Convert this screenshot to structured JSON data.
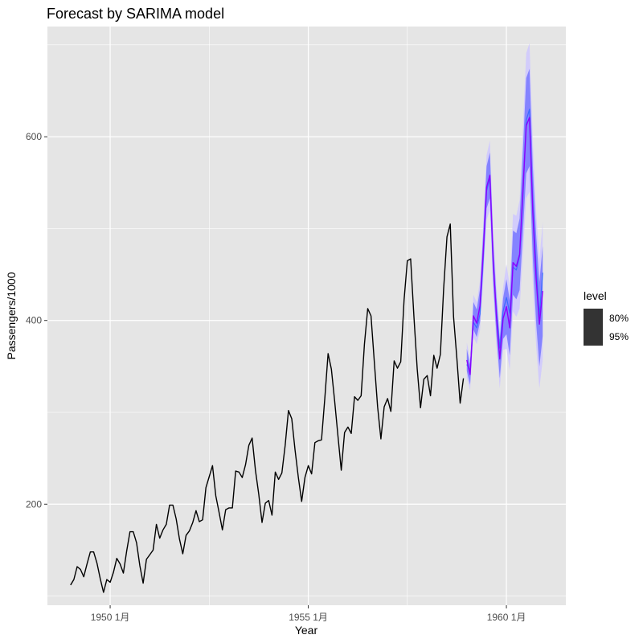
{
  "chart_data": {
    "type": "line",
    "title": "Forecast by SARIMA model",
    "xlabel": "Year",
    "ylabel": "Passengers/1000",
    "xlim": [
      "1948-06",
      "1961-07"
    ],
    "ylim": [
      90,
      720
    ],
    "x_ticks": [
      {
        "date": "1950-01",
        "label": "1950  1月"
      },
      {
        "date": "1955-01",
        "label": "1955  1月"
      },
      {
        "date": "1960-01",
        "label": "1960  1月"
      }
    ],
    "y_ticks": [
      200,
      400,
      600
    ],
    "grid": true,
    "legend": {
      "title": "level",
      "placement": "right",
      "entries": [
        "80%",
        "95%"
      ]
    },
    "colors": {
      "panel_bg": "#e5e5e5",
      "grid": "#ffffff",
      "history_line": "#000000",
      "forecast_line": "#8b00ff",
      "band_80": "#7b7bff",
      "band_95": "#cfc8ff",
      "legend_key": "#333333"
    },
    "series": [
      {
        "role": "history",
        "start": "1949-01",
        "values": [
          112,
          118,
          132,
          129,
          121,
          135,
          148,
          148,
          136,
          119,
          104,
          118,
          115,
          126,
          141,
          135,
          125,
          149,
          170,
          170,
          158,
          133,
          114,
          140,
          145,
          150,
          178,
          163,
          172,
          178,
          199,
          199,
          184,
          162,
          146,
          166,
          171,
          180,
          193,
          181,
          183,
          218,
          230,
          242,
          209,
          191,
          172,
          194,
          196,
          196,
          236,
          235,
          229,
          243,
          264,
          272,
          237,
          211,
          180,
          201,
          204,
          188,
          235,
          227,
          234,
          264,
          302,
          293,
          259,
          229,
          203,
          229,
          242,
          233,
          267,
          269,
          270,
          315,
          364,
          347,
          312,
          274,
          237,
          278,
          284,
          277,
          317,
          313,
          318,
          374,
          413,
          405,
          355,
          306,
          271,
          306,
          315,
          301,
          356,
          348,
          355,
          422,
          465,
          467,
          404,
          347,
          305,
          336,
          340,
          318,
          362,
          348,
          363,
          435,
          491,
          505,
          404,
          359,
          310,
          337
        ]
      },
      {
        "role": "forecast",
        "start": "1959-01",
        "values": [
          357,
          341,
          405,
          397,
          416,
          476,
          545,
          558,
          465,
          404,
          358,
          402,
          415,
          392,
          463,
          459,
          472,
          541,
          612,
          621,
          518,
          446,
          396,
          432
        ],
        "lo80": [
          345,
          330,
          390,
          382,
          398,
          455,
          522,
          533,
          442,
          383,
          337,
          380,
          385,
          362,
          428,
          423,
          433,
          496,
          560,
          568,
          468,
          398,
          350,
          383
        ],
        "hi80": [
          369,
          352,
          420,
          412,
          434,
          497,
          568,
          583,
          488,
          425,
          379,
          424,
          445,
          422,
          498,
          495,
          511,
          586,
          664,
          674,
          568,
          494,
          442,
          481
        ],
        "lo95": [
          338,
          324,
          382,
          374,
          389,
          444,
          510,
          520,
          430,
          372,
          326,
          368,
          369,
          346,
          410,
          404,
          413,
          472,
          533,
          540,
          441,
          373,
          326,
          357
        ],
        "hi95": [
          376,
          358,
          428,
          420,
          443,
          508,
          580,
          596,
          500,
          436,
          390,
          436,
          461,
          438,
          516,
          514,
          531,
          610,
          691,
          702,
          595,
          519,
          466,
          507
        ]
      },
      {
        "role": "forecast-alt",
        "start": "1959-01",
        "values": [
          352,
          346,
          398,
          392,
          407,
          470,
          541,
          555,
          460,
          410,
          370,
          410,
          425,
          408,
          458,
          455,
          470,
          535,
          618,
          630,
          528,
          460,
          405,
          452
        ]
      }
    ]
  }
}
